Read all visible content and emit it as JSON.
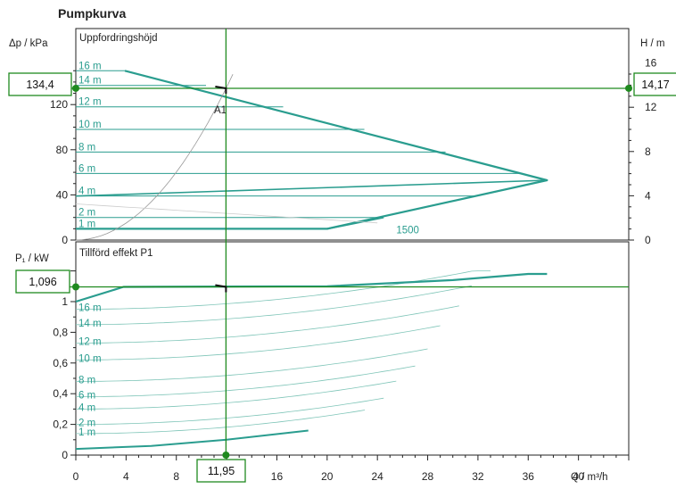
{
  "chart_data": [
    {
      "type": "line",
      "title": "Pumpkurva",
      "panel_label": "Uppfordringshöjd",
      "ylabel_left": "Δp / kPa",
      "ylabel_right": "H / m",
      "xlabel": "Q / m³/h",
      "xlim": [
        0,
        44
      ],
      "ylim_left": [
        0,
        150
      ],
      "ylim_right": [
        0,
        15.3
      ],
      "x_ticks": [
        0,
        4,
        8,
        12,
        16,
        20,
        24,
        28,
        32,
        36,
        40
      ],
      "y_ticks_left": [
        0,
        40,
        80,
        120
      ],
      "y_ticks_right": [
        0,
        4,
        8,
        12,
        16
      ],
      "grid_lines": [
        {
          "name": "16 m",
          "y_kpa": 157
        },
        {
          "name": "14 m",
          "y_kpa": 137
        },
        {
          "name": "12 m",
          "y_kpa": 118
        },
        {
          "name": "10 m",
          "y_kpa": 98
        },
        {
          "name": "8 m",
          "y_kpa": 78
        },
        {
          "name": "6 m",
          "y_kpa": 59
        },
        {
          "name": "4 m",
          "y_kpa": 39
        },
        {
          "name": "2 m",
          "y_kpa": 20
        },
        {
          "name": "1 m",
          "y_kpa": 10
        }
      ],
      "series": [
        {
          "name": "1500",
          "x": [
            0,
            20.0,
            24.5
          ],
          "y": [
            10,
            10,
            20
          ]
        },
        {
          "x": [
            3.9,
            37.5,
            0
          ],
          "y": [
            157,
            53,
            39
          ]
        },
        {
          "x": [
            0,
            2,
            4,
            6,
            8,
            10,
            12,
            14
          ],
          "y": [
            0,
            2,
            8,
            18,
            32,
            50,
            72,
            98
          ]
        }
      ],
      "operating_point": {
        "label": "A1",
        "q": "11,95",
        "dp": "134,4",
        "h": "14,17"
      }
    },
    {
      "type": "line",
      "panel_label": "Tillförd effekt P1",
      "ylabel": "P₁ / kW",
      "xlabel": "Q / m³/h",
      "xlim": [
        0,
        44
      ],
      "ylim": [
        0,
        1.3
      ],
      "x_ticks": [
        0,
        4,
        8,
        12,
        16,
        20,
        24,
        28,
        32,
        36,
        40
      ],
      "y_ticks": [
        0,
        0.2,
        0.4,
        0.6,
        0.8,
        1
      ],
      "y_tick_labels": [
        "0",
        "0,2",
        "0,4",
        "0,6",
        "0,8",
        "1"
      ],
      "curve_labels": [
        "16 m",
        "14 m",
        "12 m",
        "10 m",
        "8 m",
        "6 m",
        "4 m",
        "2 m",
        "1 m"
      ],
      "series": [
        {
          "x": [
            0,
            3.8,
            20,
            30,
            36,
            37.5
          ],
          "y": [
            1.0,
            1.096,
            1.1,
            1.14,
            1.18,
            1.18
          ]
        },
        {
          "x": [
            0,
            6,
            12,
            18.5
          ],
          "y": [
            0.04,
            0.06,
            0.1,
            0.16
          ]
        }
      ],
      "operating_point": {
        "q": "11,95",
        "p1": "1,096"
      }
    }
  ],
  "colors": {
    "curve": "#2a9d8f",
    "operating": "#1f8a1f",
    "frame": "#222222",
    "thin": "#999999"
  }
}
